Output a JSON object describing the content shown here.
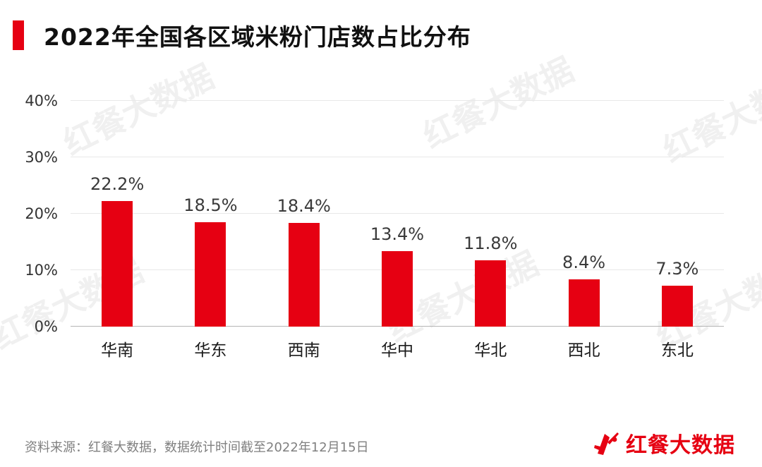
{
  "header": {
    "title": "2022年全国各区域米粉门店数占比分布"
  },
  "colors": {
    "accent": "#E60012",
    "bar": "#E60012",
    "gridline": "#e8e8e8",
    "baseline": "#b5b5b5"
  },
  "watermark": {
    "text": "红餐大数据"
  },
  "chart_data": {
    "type": "bar",
    "title": "2022年全国各区域米粉门店数占比分布",
    "categories": [
      "华南",
      "华东",
      "西南",
      "华中",
      "华北",
      "西北",
      "东北"
    ],
    "values": [
      22.2,
      18.5,
      18.4,
      13.4,
      11.8,
      8.4,
      7.3
    ],
    "value_labels": [
      "22.2%",
      "18.5%",
      "18.4%",
      "13.4%",
      "11.8%",
      "8.4%",
      "7.3%"
    ],
    "xlabel": "",
    "ylabel": "",
    "ylim": [
      0,
      40
    ],
    "yticks": [
      0,
      10,
      20,
      30,
      40
    ],
    "ytick_labels": [
      "0%",
      "10%",
      "20%",
      "30%",
      "40%"
    ],
    "grid": true,
    "legend": "none"
  },
  "footer": {
    "source": "资料来源：红餐大数据，数据统计时间截至2022年12月15日",
    "logo_text": "红餐大数据"
  }
}
